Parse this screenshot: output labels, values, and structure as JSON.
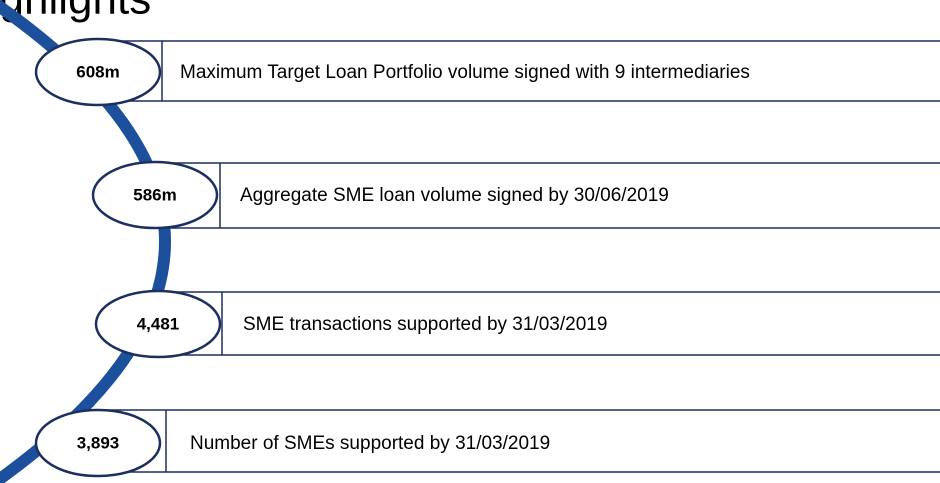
{
  "header": {
    "title": "Highlights"
  },
  "items": [
    {
      "value": "608m",
      "label": "Maximum Target Loan Portfolio volume signed with 9 intermediaries"
    },
    {
      "value": "586m",
      "label": "Aggregate SME loan volume signed by 30/06/2019"
    },
    {
      "value": "4,481",
      "label": "SME transactions supported by 31/03/2019"
    },
    {
      "value": "3,893",
      "label": "Number of SMEs supported by 31/03/2019"
    }
  ]
}
